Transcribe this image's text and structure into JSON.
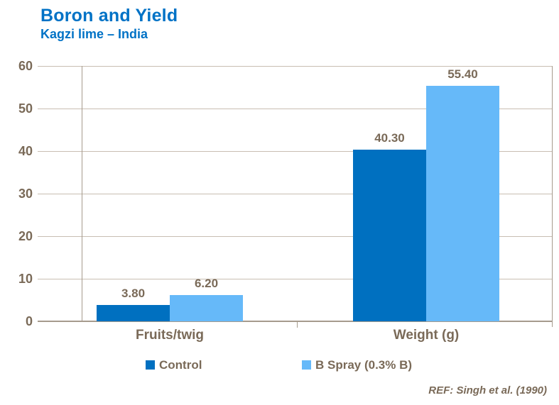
{
  "header": {
    "title": "Boron and Yield",
    "subtitle": "Kagzi lime – India"
  },
  "chart_data": {
    "type": "bar",
    "categories": [
      "Fruits/twig",
      "Weight (g)"
    ],
    "series": [
      {
        "name": "Control",
        "color": "#0070C0",
        "values": [
          3.8,
          40.3
        ],
        "labels": [
          "3.80",
          "40.30"
        ]
      },
      {
        "name": "B Spray (0.3% B)",
        "color": "#66B9F9",
        "values": [
          6.2,
          55.4
        ],
        "labels": [
          "6.20",
          "55.40"
        ]
      }
    ],
    "ylim": [
      0,
      60
    ],
    "yticks": [
      0,
      10,
      20,
      30,
      40,
      50,
      60
    ],
    "grid": "horizontal-major",
    "legend_position": "bottom"
  },
  "footer": {
    "ref": "REF: Singh et al. (1990)"
  },
  "colors": {
    "title_blue": "#0072C6",
    "control_bar": "#0070C0",
    "bspray_bar": "#66B9F9",
    "label_brown": "#7A6A58",
    "gridline": "#C8BEB2",
    "axis": "#A69B8D"
  }
}
